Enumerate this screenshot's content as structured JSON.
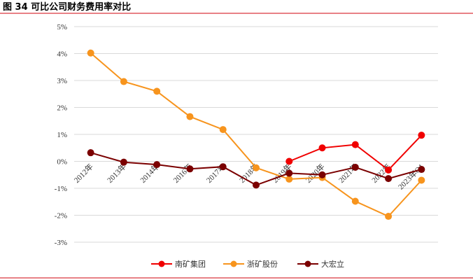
{
  "figure": {
    "title": "图 34  可比公司财务费用率对比"
  },
  "chart_data": {
    "type": "line",
    "title": "图 34  可比公司财务费用率对比",
    "xlabel": "",
    "ylabel": "",
    "categories": [
      "2012年",
      "2013年",
      "2014年",
      "2016年",
      "2017年",
      "2018年",
      "2019年",
      "2020年",
      "2021年",
      "2022年",
      "2023年Q1"
    ],
    "ylim": [
      -3,
      5
    ],
    "yticks": [
      "5%",
      "4%",
      "3%",
      "2%",
      "1%",
      "0%",
      "-1%",
      "-2%",
      "-3%"
    ],
    "grid": true,
    "legend_position": "bottom",
    "series": [
      {
        "name": "南矿集团",
        "color": "#f00000",
        "values": [
          null,
          null,
          null,
          null,
          null,
          null,
          0.0,
          0.5,
          0.62,
          -0.32,
          0.97
        ]
      },
      {
        "name": "浙矿股份",
        "color": "#f7941d",
        "values": [
          4.02,
          2.96,
          2.6,
          1.66,
          1.18,
          -0.24,
          -0.66,
          -0.6,
          -1.48,
          -2.04,
          -0.7
        ]
      },
      {
        "name": "大宏立",
        "color": "#7b0000",
        "values": [
          0.32,
          -0.03,
          -0.12,
          -0.28,
          -0.2,
          -0.88,
          -0.44,
          -0.5,
          -0.22,
          -0.64,
          -0.3
        ]
      }
    ]
  }
}
